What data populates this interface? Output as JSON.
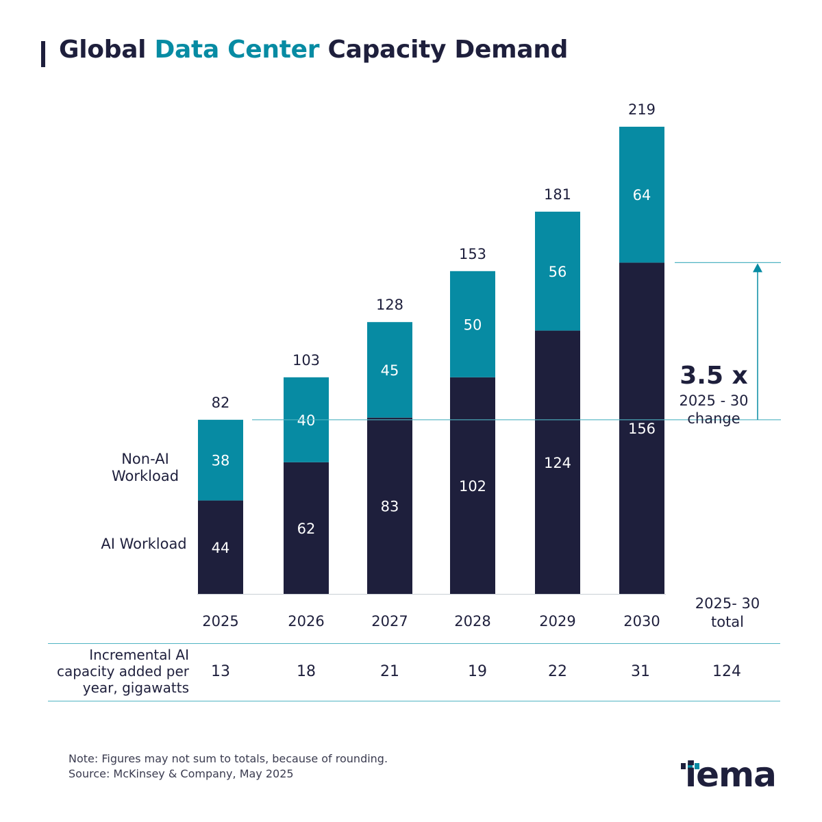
{
  "header": {
    "title_part1": "Global",
    "title_accent": "Data Center",
    "title_part2": "Capacity Demand"
  },
  "legend": {
    "non_ai": "Non-AI Workload",
    "ai": "AI Workload"
  },
  "colors": {
    "ai": "#1e1f3c",
    "non_ai": "#078ba3",
    "rule": "#4fb3c2"
  },
  "chart_data": {
    "type": "bar",
    "stacked": true,
    "categories": [
      "2025",
      "2026",
      "2027",
      "2028",
      "2029",
      "2030"
    ],
    "series": [
      {
        "name": "AI Workload",
        "values": [
          44,
          62,
          83,
          102,
          124,
          156
        ]
      },
      {
        "name": "Non-AI Workload",
        "values": [
          38,
          40,
          45,
          50,
          56,
          64
        ]
      }
    ],
    "totals": [
      82,
      103,
      128,
      153,
      181,
      219
    ],
    "title": "Global Data Center Capacity Demand",
    "xlabel": "",
    "ylabel": "",
    "grid": false,
    "annotation": {
      "big": "3.5 x",
      "sub": "2025 - 30 change"
    }
  },
  "incremental": {
    "label": "Incremental AI capacity added per year, gigawatts",
    "values": [
      "13",
      "18",
      "21",
      "19",
      "22",
      "31"
    ],
    "total_header": "2025- 30 total",
    "total_value": "124"
  },
  "footer": {
    "note": "Note: Figures may not sum to totals, because of rounding.",
    "source": "Source: McKinsey & Company, May 2025"
  },
  "logo": {
    "text": "iema"
  }
}
